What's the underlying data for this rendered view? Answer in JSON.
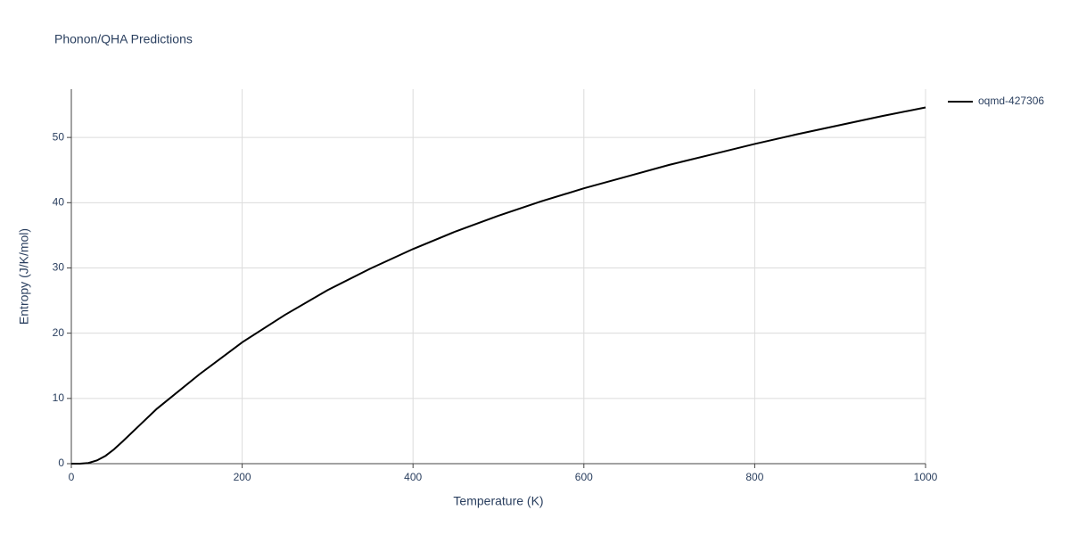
{
  "chart_data": {
    "type": "line",
    "title": "Phonon/QHA Predictions",
    "x_label": "Temperature (K)",
    "y_label": "Entropy (J/K/mol)",
    "x": [
      0,
      10,
      20,
      30,
      40,
      50,
      60,
      80,
      100,
      150,
      200,
      250,
      300,
      350,
      400,
      450,
      500,
      550,
      600,
      650,
      700,
      750,
      800,
      850,
      900,
      950,
      1000
    ],
    "series": [
      {
        "name": "oqmd-427306",
        "color": "#000000",
        "values": [
          0,
          0,
          0.1,
          0.5,
          1.2,
          2.2,
          3.4,
          5.9,
          8.4,
          13.7,
          18.6,
          22.8,
          26.6,
          29.9,
          32.9,
          35.6,
          38.0,
          40.2,
          42.2,
          44.0,
          45.8,
          47.4,
          49.0,
          50.5,
          51.9,
          53.3,
          54.6
        ]
      }
    ],
    "xlim": [
      0,
      1000
    ],
    "xticks": [
      0,
      200,
      400,
      600,
      800,
      1000
    ],
    "ylim": [
      0,
      57.4
    ],
    "yticks": [
      0,
      10,
      20,
      30,
      40,
      50
    ],
    "grid": true,
    "legend": "right"
  }
}
